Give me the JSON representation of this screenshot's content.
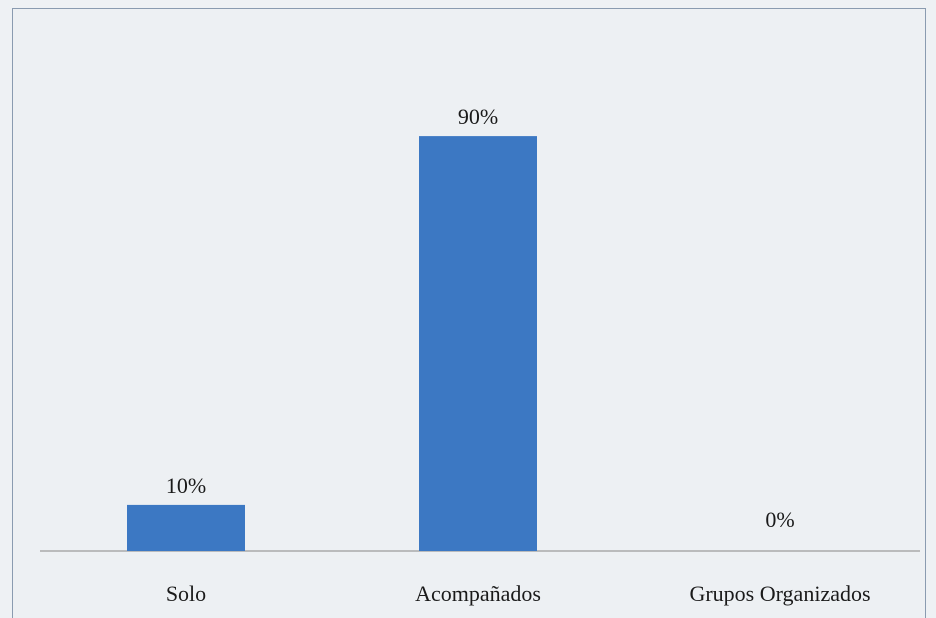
{
  "chart_data": {
    "type": "bar",
    "categories": [
      "Solo",
      "Acompañados",
      "Grupos Organizados"
    ],
    "values": [
      10,
      90,
      0
    ],
    "value_labels": [
      "10%",
      "90%",
      "0%"
    ],
    "ylim": [
      0,
      100
    ],
    "grid": false,
    "bar_color": "#3c78c3",
    "axis_color": "#a9a9a9"
  }
}
